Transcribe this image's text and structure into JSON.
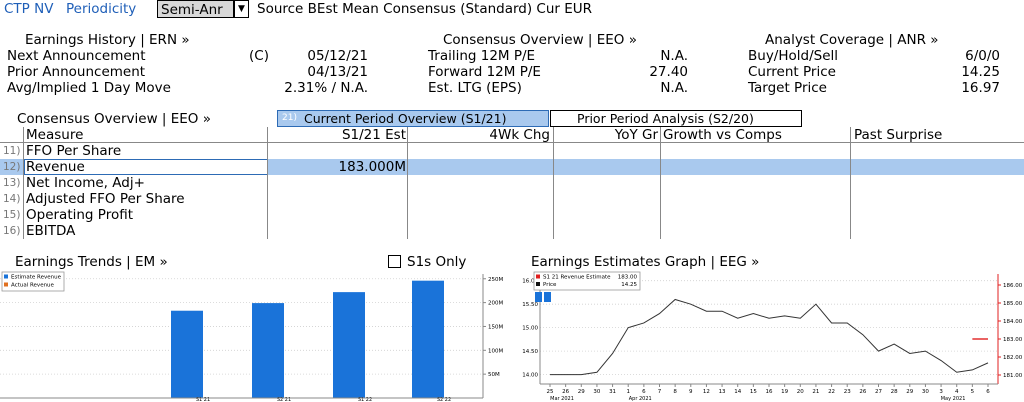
{
  "topbar": {
    "ticker": "CTP NV",
    "periodicity_label": "Periodicity",
    "periodicity_value": "Semi-Anr",
    "rest": "Source BEst Mean Consensus (Standard) Cur EUR"
  },
  "summary": {
    "earnings_history": "Earnings History | ERN »",
    "next_label": "Next Announcement",
    "next_flag": "(C)",
    "next_value": "05/12/21",
    "prior_label": "Prior Announcement",
    "prior_value": "04/13/21",
    "avg_label": "Avg/Implied 1 Day Move",
    "avg_value": "2.31% / N.A.",
    "consensus_overview": "Consensus Overview | EEO »",
    "trailing_label": "Trailing 12M P/E",
    "trailing_value": "N.A.",
    "forward_label": "Forward 12M P/E",
    "forward_value": "27.40",
    "ltg_label": "Est. LTG (EPS)",
    "ltg_value": "N.A.",
    "analyst_coverage": "Analyst Coverage | ANR »",
    "bhs_label": "Buy/Hold/Sell",
    "bhs_value": "6/0/0",
    "price_label": "Current Price",
    "price_value": "14.25",
    "target_label": "Target Price",
    "target_value": "16.97"
  },
  "tabs": {
    "section": "Consensus Overview | EEO »",
    "active_num": "21)",
    "active": "Current Period Overview (S1/21)",
    "inactive": "Prior Period Analysis (S2/20)"
  },
  "table": {
    "headers": [
      "Measure",
      "S1/21 Est",
      "4Wk Chg",
      "YoY Gr",
      "Growth vs Comps",
      "Past Surprise"
    ],
    "rows": [
      {
        "num": "11)",
        "name": "FFO Per Share",
        "value": ""
      },
      {
        "num": "12)",
        "name": "Revenue",
        "value": "183.000M"
      },
      {
        "num": "13)",
        "name": "Net Income, Adj+",
        "value": ""
      },
      {
        "num": "14)",
        "name": "Adjusted FFO Per Share",
        "value": ""
      },
      {
        "num": "15)",
        "name": "Operating Profit",
        "value": ""
      },
      {
        "num": "16)",
        "name": "EBITDA",
        "value": ""
      }
    ]
  },
  "trends": {
    "title": "Earnings Trends | EM »",
    "s1_only": "S1s Only"
  },
  "estimates_graph": {
    "title": "Earnings Estimates Graph | EEG »"
  },
  "colors": {
    "highlight": "#a9c9ee",
    "estimate_bar": "#1a73d9",
    "actual_bar": "#e07020",
    "price_line": "#333333",
    "estimate_line": "#e02020"
  },
  "chart_data": [
    {
      "type": "bar",
      "categories": [
        "S1 21",
        "S2 21",
        "S1 22",
        "S2 22"
      ],
      "series": [
        {
          "name": "Estimate Revenue",
          "values": [
            183,
            199,
            222,
            246
          ]
        },
        {
          "name": "Actual Revenue",
          "values": [
            null,
            null,
            null,
            null
          ]
        }
      ],
      "ylim": [
        0,
        260
      ],
      "yticks": [
        "50M",
        "100M",
        "150M",
        "200M",
        "250M"
      ],
      "ytick_values": [
        50,
        100,
        150,
        200,
        250
      ],
      "legend": "top-left"
    },
    {
      "type": "line",
      "x": [
        "25",
        "26",
        "29",
        "30",
        "31",
        "1",
        "6",
        "7",
        "8",
        "9",
        "12",
        "13",
        "14",
        "15",
        "16",
        "19",
        "20",
        "21",
        "22",
        "23",
        "26",
        "27",
        "28",
        "29",
        "30",
        "3",
        "4",
        "5",
        "6"
      ],
      "month_labels": [
        "Mar 2021",
        "Apr 2021",
        "May 2021"
      ],
      "series": [
        {
          "name": "Price",
          "axis": "left",
          "values": [
            14.0,
            14.0,
            14.0,
            14.05,
            14.45,
            15.0,
            15.1,
            15.3,
            15.6,
            15.5,
            15.35,
            15.35,
            15.2,
            15.3,
            15.2,
            15.25,
            15.2,
            15.5,
            15.1,
            15.1,
            14.85,
            14.5,
            14.65,
            14.45,
            14.5,
            14.3,
            14.05,
            14.1,
            14.25
          ]
        },
        {
          "name": "S1 21 Revenue Estimate",
          "axis": "right",
          "values": [
            null,
            null,
            null,
            null,
            null,
            null,
            null,
            null,
            null,
            null,
            null,
            null,
            null,
            null,
            null,
            null,
            null,
            null,
            null,
            null,
            null,
            null,
            null,
            null,
            null,
            null,
            null,
            183.0,
            183.0
          ]
        }
      ],
      "legend_values": {
        "S1 21 Revenue Estimate": "183.00",
        "Price": "14.25"
      },
      "yleft_ticks": [
        "14.00",
        "14.50",
        "15.00",
        "15.50",
        "16.00"
      ],
      "yleft": [
        13.8,
        16.1
      ],
      "yright_ticks": [
        "181.00",
        "182.00",
        "183.00",
        "184.00",
        "185.00",
        "186.00"
      ],
      "yright": [
        180.5,
        186.5
      ],
      "legend": "top-left"
    }
  ]
}
